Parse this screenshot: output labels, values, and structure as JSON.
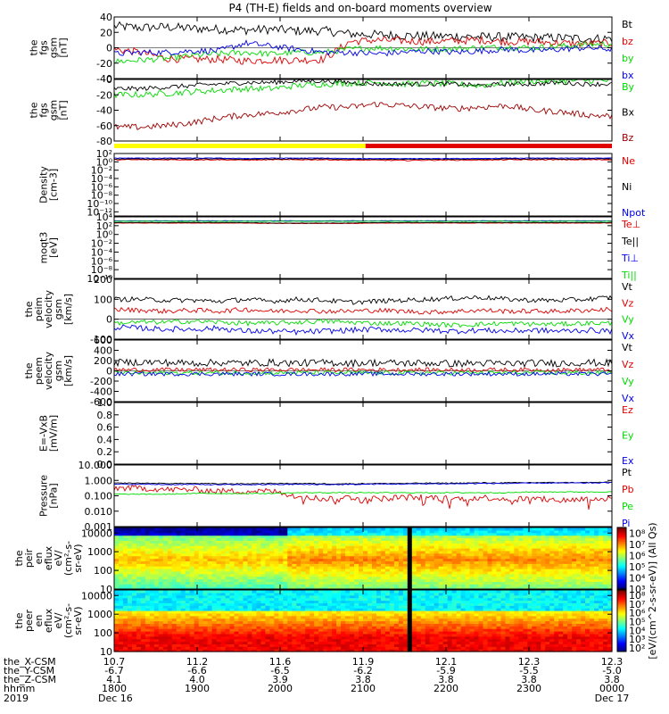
{
  "title": "P4 (TH-E) fields and on-board moments overview",
  "colors": {
    "black": "#000000",
    "red": "#e00000",
    "green": "#00dd00",
    "blue": "#0000ee",
    "darkred": "#a00000",
    "yellow": "#ffff00"
  },
  "chart_data": [
    {
      "id": "fgs_gsm",
      "type": "line",
      "ylabel": [
        "the",
        "fgs",
        "gsm",
        "[nT]"
      ],
      "ylim": [
        -40,
        40
      ],
      "ticks": [
        "40",
        "20",
        "0",
        "-20",
        "-40"
      ],
      "tick_values": [
        40,
        20,
        0,
        -20,
        -40
      ],
      "series": [
        {
          "name": "Bt",
          "color": "black",
          "base": [
            28,
            26,
            27,
            25,
            24,
            23,
            24,
            22,
            22,
            18,
            17,
            16,
            15,
            15,
            14,
            14,
            13,
            13,
            12,
            12
          ],
          "noise": 6
        },
        {
          "name": "bz",
          "color": "red",
          "base": [
            -2,
            -6,
            -14,
            -15,
            -15,
            -17,
            -16,
            -16,
            -15,
            8,
            10,
            9,
            8,
            9,
            10,
            8,
            8,
            6,
            5,
            6
          ],
          "noise": 5
        },
        {
          "name": "by",
          "color": "green",
          "base": [
            -18,
            -16,
            -14,
            -10,
            -8,
            -6,
            -8,
            -6,
            -6,
            -2,
            0,
            -1,
            -2,
            -1,
            0,
            1,
            0,
            2,
            4,
            5
          ],
          "noise": 4
        },
        {
          "name": "bx",
          "color": "blue",
          "base": [
            -8,
            -6,
            -6,
            -4,
            -4,
            6,
            2,
            -2,
            -6,
            -6,
            -8,
            -6,
            -4,
            -6,
            -4,
            -2,
            -4,
            -2,
            0,
            -2
          ],
          "noise": 4
        }
      ]
    },
    {
      "id": "fgs_gsm_b",
      "type": "line",
      "ylabel": [
        "the",
        "fgs",
        "gsm",
        "[nT]"
      ],
      "ylim": [
        -80,
        0
      ],
      "ticks": [
        "0",
        "-20",
        "-40",
        "-60",
        "-80"
      ],
      "tick_values": [
        0,
        -20,
        -40,
        -60,
        -80
      ],
      "series": [
        {
          "name": "By",
          "color": "green",
          "base": [
            -20,
            -20,
            -18,
            -16,
            -14,
            -12,
            -12,
            -8,
            -6,
            -5,
            -4,
            -6,
            -5,
            -6,
            -8,
            -4,
            -2,
            -2,
            -1,
            -2
          ],
          "noise": 4
        },
        {
          "name": "Bx",
          "color": "black",
          "base": [
            -12,
            -12,
            -10,
            -8,
            -6,
            -4,
            -4,
            -2,
            -2,
            -4,
            -6,
            -6,
            -6,
            -6,
            -8,
            -6,
            -6,
            -4,
            -6,
            -6
          ],
          "noise": 3
        },
        {
          "name": "Bz",
          "color": "darkred",
          "base": [
            -62,
            -62,
            -60,
            -56,
            -50,
            -46,
            -44,
            -40,
            -36,
            -36,
            -32,
            -34,
            -36,
            -38,
            -36,
            -34,
            -40,
            -42,
            -46,
            -48
          ],
          "noise": 4
        }
      ]
    },
    {
      "id": "density",
      "type": "line",
      "log": true,
      "ylabel": [
        "Density",
        "[cm-3]"
      ],
      "ylim": [
        -13,
        2
      ],
      "ticks": [
        "10²",
        "10⁰",
        "10⁻²",
        "10⁻⁴",
        "10⁻⁶",
        "10⁻⁸",
        "10⁻¹⁰",
        "10⁻¹²"
      ],
      "tick_values": [
        2,
        0,
        -2,
        -4,
        -6,
        -8,
        -10,
        -12
      ],
      "series": [
        {
          "name": "Ne",
          "color": "red",
          "base": [
            0.5,
            0.5,
            0.5,
            0.5,
            0.5,
            0.4,
            0.5,
            0.5,
            0.5,
            0.4,
            0.4,
            0.3,
            0.4,
            0.4,
            0.4,
            0.5,
            0.5,
            0.5,
            0.5,
            0.5
          ],
          "noise": 0.1
        },
        {
          "name": "Ni",
          "color": "black",
          "base": [
            0.7,
            0.7,
            0.7,
            0.7,
            0.7,
            0.6,
            0.7,
            0.7,
            0.7,
            0.6,
            0.6,
            0.6,
            0.6,
            0.6,
            0.6,
            0.7,
            0.7,
            0.7,
            0.7,
            0.7
          ],
          "noise": 0.08
        },
        {
          "name": "Npot",
          "color": "blue",
          "base": [
            0.9,
            0.9,
            0.9,
            0.9,
            0.9,
            0.8,
            0.9,
            0.9,
            0.9,
            0.8,
            0.8,
            0.8,
            0.8,
            0.8,
            0.8,
            0.9,
            0.9,
            0.9,
            0.9,
            0.9
          ],
          "noise": 0.06
        }
      ]
    },
    {
      "id": "temp",
      "type": "line",
      "log": true,
      "ylabel": [
        "moqt3",
        "[eV]"
      ],
      "ylim": [
        -10,
        4
      ],
      "ticks": [
        "10⁴",
        "10²",
        "10⁰",
        "10⁻²",
        "10⁻⁴",
        "10⁻⁶",
        "10⁻⁸",
        "10⁻¹⁰"
      ],
      "tick_values": [
        4,
        2,
        0,
        -2,
        -4,
        -6,
        -8,
        -10
      ],
      "series": [
        {
          "name": "Te⊥",
          "color": "red",
          "base": [
            2.6,
            2.6,
            2.6,
            2.6,
            2.6,
            2.6,
            2.5,
            2.5,
            2.5,
            2.5,
            2.6,
            2.6,
            2.6,
            2.6,
            2.6,
            2.6,
            2.6,
            2.6,
            2.6,
            2.6
          ],
          "noise": 0.05
        },
        {
          "name": "Te||",
          "color": "black",
          "base": [
            2.7,
            2.7,
            2.7,
            2.7,
            2.7,
            2.7,
            2.6,
            2.6,
            2.6,
            2.6,
            2.7,
            2.7,
            2.7,
            2.7,
            2.7,
            2.7,
            2.7,
            2.7,
            2.7,
            2.7
          ],
          "noise": 0.05
        },
        {
          "name": "Ti⊥",
          "color": "blue",
          "base": [
            3.1,
            3.1,
            3.1,
            3.1,
            3.1,
            3.1,
            3.1,
            3.1,
            3.1,
            3.1,
            3.1,
            3.1,
            3.1,
            3.1,
            3.1,
            3.1,
            3.1,
            3.1,
            3.1,
            3.1
          ],
          "noise": 0.05
        },
        {
          "name": "Ti||",
          "color": "green",
          "base": [
            3.0,
            3.0,
            3.0,
            3.0,
            3.0,
            3.0,
            3.0,
            3.0,
            3.0,
            3.0,
            3.0,
            3.0,
            3.0,
            3.0,
            3.0,
            3.0,
            3.0,
            3.0,
            3.0,
            3.0
          ],
          "noise": 0.05
        }
      ]
    },
    {
      "id": "peim",
      "type": "line",
      "ylabel": [
        "the",
        "peim",
        "velocity",
        "gsm",
        "[km/s]"
      ],
      "ylim": [
        -100,
        200
      ],
      "ticks": [
        "200",
        "100",
        "0",
        "-100"
      ],
      "tick_values": [
        200,
        100,
        0,
        -100
      ],
      "series": [
        {
          "name": "Vt",
          "color": "black",
          "base": [
            100,
            100,
            95,
            95,
            90,
            100,
            90,
            100,
            95,
            85,
            90,
            95,
            100,
            105,
            110,
            100,
            95,
            95,
            100,
            110
          ],
          "noise": 12
        },
        {
          "name": "Vz",
          "color": "red",
          "base": [
            50,
            45,
            40,
            45,
            40,
            50,
            40,
            45,
            40,
            40,
            45,
            40,
            35,
            40,
            45,
            40,
            40,
            40,
            45,
            50
          ],
          "noise": 12
        },
        {
          "name": "Vy",
          "color": "green",
          "base": [
            -20,
            -15,
            -15,
            -10,
            -15,
            -20,
            -20,
            -15,
            -10,
            -15,
            -20,
            -20,
            -25,
            -30,
            -25,
            -20,
            -25,
            -25,
            -20,
            -20
          ],
          "noise": 12
        },
        {
          "name": "Vx",
          "color": "blue",
          "base": [
            -40,
            -45,
            -50,
            -50,
            -45,
            -60,
            -60,
            -65,
            -60,
            -55,
            -50,
            -55,
            -55,
            -60,
            -55,
            -60,
            -55,
            -60,
            -55,
            -60
          ],
          "noise": 14
        }
      ]
    },
    {
      "id": "peem",
      "type": "line",
      "ylabel": [
        "the",
        "peem",
        "velocity",
        "gsm",
        "[km/s]"
      ],
      "ylim": [
        -600,
        600
      ],
      "ticks": [
        "600",
        "400",
        "200",
        "0",
        "-200",
        "-400",
        "-600"
      ],
      "tick_values": [
        600,
        400,
        200,
        0,
        -200,
        -400,
        -600
      ],
      "series": [
        {
          "name": "Vt",
          "color": "black",
          "base": [
            160,
            170,
            160,
            150,
            160,
            150,
            160,
            150,
            160,
            150,
            160,
            150,
            150,
            140,
            150,
            140,
            150,
            150,
            160,
            150
          ],
          "noise": 70
        },
        {
          "name": "Vz",
          "color": "red",
          "base": [
            20,
            20,
            20,
            20,
            20,
            20,
            20,
            20,
            20,
            20,
            20,
            20,
            20,
            20,
            20,
            20,
            20,
            20,
            20,
            20
          ],
          "noise": 40
        },
        {
          "name": "Vy",
          "color": "green",
          "base": [
            -40,
            -40,
            -40,
            -40,
            -40,
            -40,
            -40,
            -40,
            -40,
            -40,
            -40,
            -40,
            -40,
            -40,
            -40,
            -40,
            -40,
            -40,
            -40,
            -40
          ],
          "noise": 40
        },
        {
          "name": "Vx",
          "color": "blue",
          "base": [
            -60,
            -60,
            -60,
            -60,
            -60,
            -60,
            -60,
            -60,
            -60,
            -60,
            -60,
            -60,
            -60,
            -60,
            -60,
            -60,
            -60,
            -60,
            -60,
            -60
          ],
          "noise": 40
        }
      ]
    },
    {
      "id": "efield",
      "type": "line",
      "ylabel": [
        "E=-VxB",
        "[mV/m]"
      ],
      "ylim": [
        0,
        1
      ],
      "ticks": [
        "1.0",
        "0.8",
        "0.6",
        "0.4",
        "0.2",
        "0.0"
      ],
      "tick_values": [
        1,
        0.8,
        0.6,
        0.4,
        0.2,
        0
      ],
      "series": [
        {
          "name": "Ez",
          "color": "red",
          "base": [],
          "noise": 0
        },
        {
          "name": "Ey",
          "color": "green",
          "base": [],
          "noise": 0
        },
        {
          "name": "Ex",
          "color": "blue",
          "base": [],
          "noise": 0
        }
      ]
    },
    {
      "id": "pressure",
      "type": "line",
      "log": true,
      "ylabel": [
        "Pressure",
        "[nPa]"
      ],
      "ylim": [
        -3,
        1
      ],
      "ticks": [
        "10.000",
        "1.000",
        "0.100",
        "0.010",
        "0.001"
      ],
      "tick_values": [
        1,
        0,
        -1,
        -2,
        -3
      ],
      "series": [
        {
          "name": "Pt",
          "color": "black",
          "base": [
            -0.18,
            -0.18,
            -0.2,
            -0.2,
            -0.22,
            -0.22,
            -0.2,
            -0.2,
            -0.22,
            -0.22,
            -0.2,
            -0.2,
            -0.18,
            -0.18,
            -0.16,
            -0.16,
            -0.14,
            -0.14,
            -0.14,
            -0.12
          ],
          "noise": 0.03
        },
        {
          "name": "Pb",
          "color": "red",
          "base": [
            -0.5,
            -0.5,
            -0.6,
            -0.6,
            -0.7,
            -0.7,
            -0.7,
            -1.0,
            -1.2,
            -1.1,
            -1.2,
            -1.1,
            -1.1,
            -1.2,
            -1.1,
            -1.2,
            -1.2,
            -1.3,
            -1.2,
            -1.2
          ],
          "noise": 0.2
        },
        {
          "name": "Pe",
          "color": "green",
          "base": [
            -0.9,
            -0.9,
            -0.9,
            -0.85,
            -0.85,
            -0.85,
            -0.85,
            -0.8,
            -0.8,
            -0.8,
            -0.8,
            -0.8,
            -0.8,
            -0.8,
            -0.8,
            -0.8,
            -0.75,
            -0.75,
            -0.75,
            -0.75
          ],
          "noise": 0.03
        },
        {
          "name": "Pi",
          "color": "blue",
          "base": [
            -0.25,
            -0.25,
            -0.27,
            -0.27,
            -0.28,
            -0.28,
            -0.27,
            -0.26,
            -0.27,
            -0.27,
            -0.24,
            -0.24,
            -0.22,
            -0.22,
            -0.2,
            -0.2,
            -0.18,
            -0.17,
            -0.17,
            -0.15
          ],
          "noise": 0.03
        }
      ]
    },
    {
      "id": "peir",
      "type": "heatmap",
      "ylabel": [
        "the",
        "peir",
        "en",
        "eflux",
        "eV/",
        "(cm²-s-",
        "sr-eV)"
      ],
      "ylim": [
        1,
        4.3
      ],
      "ticks": [
        "10000",
        "1000",
        "100",
        "10"
      ],
      "tick_values": [
        4,
        3,
        2,
        1
      ],
      "colorbar": {
        "ticks": [
          "10⁸",
          "10⁷",
          "10⁶",
          "10⁵",
          "10⁴",
          "10³"
        ],
        "tick_values": [
          8,
          7,
          6,
          5,
          4,
          3
        ],
        "range": [
          3,
          8.5
        ]
      }
    },
    {
      "id": "peer",
      "type": "heatmap",
      "ylabel": [
        "the",
        "peer",
        "en",
        "eflux",
        "eV/",
        "(cm²-s-",
        "sr-eV)"
      ],
      "ylim": [
        1,
        4.3
      ],
      "ticks": [
        "10000",
        "1000",
        "100",
        "10"
      ],
      "tick_values": [
        4,
        3,
        2,
        1
      ],
      "colorbar": {
        "ticks": [
          "10⁸",
          "10⁷",
          "10⁶",
          "10⁵",
          "10⁴",
          "10³",
          "10²"
        ],
        "tick_values": [
          8,
          7,
          6,
          5,
          4,
          3,
          2
        ],
        "range": [
          1.6,
          8.6
        ]
      }
    }
  ],
  "colorbar_label": "[eV/(cm^2-s-sr-eV)] (All Qs)",
  "mode_bar": {
    "split": 0.505,
    "left_color": "yellow",
    "right_color": "red"
  },
  "xaxis": {
    "row_labels": [
      "the_X-CSM",
      "the_Y-CSM",
      "the_Z-CSM",
      "hhmm",
      "2019"
    ],
    "columns": [
      [
        "10.7",
        "-6.7",
        "4.1",
        "1800",
        "Dec 16"
      ],
      [
        "11.2",
        "-6.6",
        "4.0",
        "1900",
        ""
      ],
      [
        "11.6",
        "-6.5",
        "3.9",
        "2000",
        ""
      ],
      [
        "11.9",
        "-6.2",
        "3.8",
        "2100",
        ""
      ],
      [
        "12.1",
        "-5.9",
        "3.8",
        "2200",
        ""
      ],
      [
        "12.3",
        "-5.5",
        "3.8",
        "2300",
        ""
      ],
      [
        "12.3",
        "-5.0",
        "3.8",
        "0000",
        "Dec 17"
      ]
    ]
  }
}
